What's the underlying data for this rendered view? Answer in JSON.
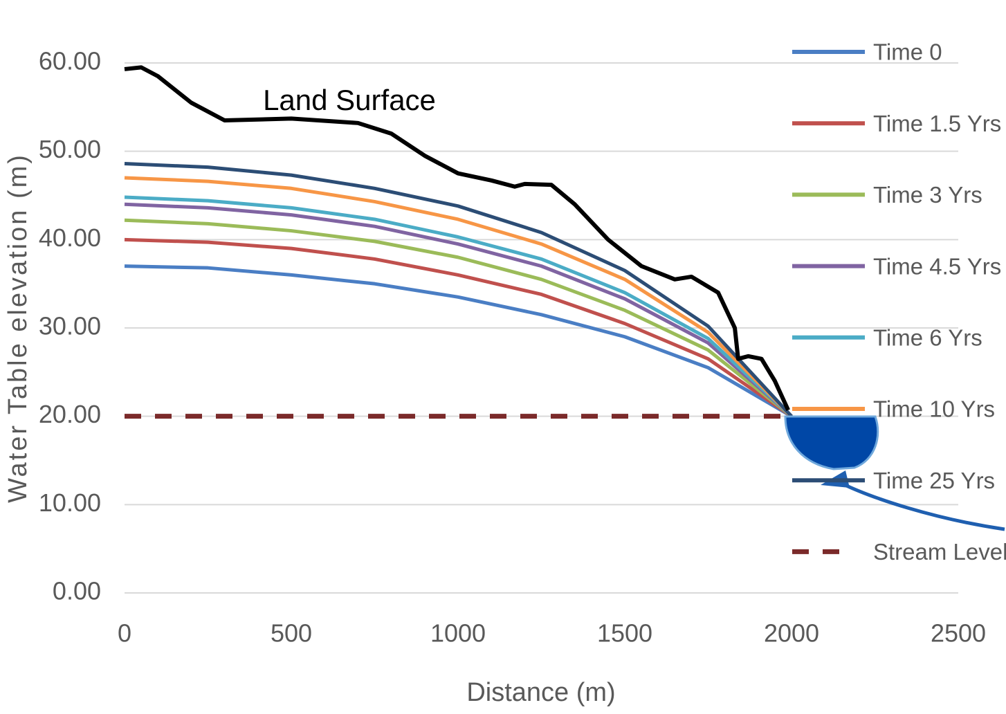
{
  "chart_data": {
    "type": "line",
    "y_label": "Water Table elevation (m)",
    "x_label": "Distance (m)",
    "annotation": "Land Surface",
    "xlim": [
      0,
      2500
    ],
    "xticks": [
      0,
      500,
      1000,
      1500,
      2000,
      2500
    ],
    "ylim": [
      0,
      60
    ],
    "yticks": [
      {
        "value": 0,
        "label": "0.00"
      },
      {
        "value": 10,
        "label": "10.00"
      },
      {
        "value": 20,
        "label": "20.00"
      },
      {
        "value": 30,
        "label": "30.00"
      },
      {
        "value": 40,
        "label": "40.00"
      },
      {
        "value": 50,
        "label": "50.00"
      },
      {
        "value": 60,
        "label": "60.00"
      }
    ],
    "grid": true,
    "legend": "right",
    "series": [
      {
        "name": "Time 0",
        "color": "#4a7ec4",
        "x": [
          0,
          250,
          500,
          750,
          1000,
          1250,
          1500,
          1750,
          2000
        ],
        "values": [
          37,
          36.8,
          36,
          35,
          33.5,
          31.5,
          29,
          25.5,
          20
        ]
      },
      {
        "name": "Time 1.5 Yrs",
        "color": "#c0504d",
        "x": [
          0,
          250,
          500,
          750,
          1000,
          1250,
          1500,
          1750,
          2000
        ],
        "values": [
          40,
          39.7,
          39,
          37.8,
          36,
          33.8,
          30.5,
          26.5,
          20
        ]
      },
      {
        "name": "Time 3 Yrs",
        "color": "#9bbb59",
        "x": [
          0,
          250,
          500,
          750,
          1000,
          1250,
          1500,
          1750,
          2000
        ],
        "values": [
          42.2,
          41.8,
          41,
          39.8,
          38,
          35.5,
          32,
          27.5,
          20
        ]
      },
      {
        "name": "Time 4.5 Yrs",
        "color": "#8064a2",
        "x": [
          0,
          250,
          500,
          750,
          1000,
          1250,
          1500,
          1750,
          2000
        ],
        "values": [
          44,
          43.6,
          42.8,
          41.5,
          39.5,
          37,
          33.3,
          28.3,
          20
        ]
      },
      {
        "name": "Time 6 Yrs",
        "color": "#4bacc6",
        "x": [
          0,
          250,
          500,
          750,
          1000,
          1250,
          1500,
          1750,
          2000
        ],
        "values": [
          44.8,
          44.4,
          43.6,
          42.3,
          40.3,
          37.8,
          34,
          28.8,
          20
        ]
      },
      {
        "name": "Time 10 Yrs",
        "color": "#f79646",
        "x": [
          0,
          250,
          500,
          750,
          1000,
          1250,
          1500,
          1750,
          2000
        ],
        "values": [
          47,
          46.6,
          45.8,
          44.3,
          42.3,
          39.5,
          35.5,
          29.5,
          20
        ]
      },
      {
        "name": "Time 25 Yrs",
        "color": "#2c4d75",
        "x": [
          0,
          250,
          500,
          750,
          1000,
          1250,
          1500,
          1750,
          2000
        ],
        "values": [
          48.6,
          48.2,
          47.3,
          45.8,
          43.8,
          40.8,
          36.5,
          30.2,
          20
        ]
      },
      {
        "name": "Stream Level",
        "color": "#7b2a2a",
        "dashed": true,
        "x": [
          0,
          2000
        ],
        "values": [
          20,
          20
        ]
      }
    ],
    "land_surface": {
      "color": "#000000",
      "x": [
        0,
        50,
        100,
        200,
        300,
        500,
        700,
        800,
        900,
        1000,
        1100,
        1170,
        1200,
        1280,
        1350,
        1450,
        1550,
        1650,
        1700,
        1780,
        1830,
        1840,
        1870,
        1910,
        1950,
        1990
      ],
      "values": [
        59.3,
        59.5,
        58.5,
        55.5,
        53.5,
        53.7,
        53.2,
        52,
        49.5,
        47.5,
        46.7,
        46,
        46.3,
        46.2,
        44,
        40,
        37,
        35.5,
        35.8,
        34,
        30,
        26.5,
        26.8,
        26.5,
        24,
        20.7
      ]
    }
  }
}
